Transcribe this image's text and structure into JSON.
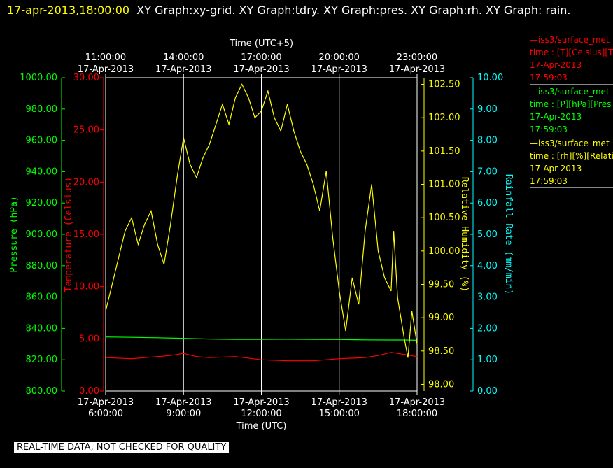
{
  "header": {
    "timestamp": "17-apr-2013,18:00:00",
    "graphs_text": "XY Graph:xy-grid.  XY Graph:tdry.  XY Graph:pres.  XY Graph:rh.  XY Graph: rain."
  },
  "legend": [
    {
      "color": "#ff0000",
      "line1": "—iss3/surface_met",
      "line2": "time : [T][Celsius][T",
      "line3": "17-Apr-2013",
      "line4": "17:59:03"
    },
    {
      "color": "#00ff00",
      "line1": "—iss3/surface_met",
      "line2": "time : [P][hPa][Pres",
      "line3": "17-Apr-2013",
      "line4": "17:59:03"
    },
    {
      "color": "#ffff00",
      "line1": "—iss3/surface_met",
      "line2": "time : [rh][%][Relati",
      "line3": "17-Apr-2013",
      "line4": "17:59:03"
    }
  ],
  "disclaimer": "REAL-TIME DATA, NOT CHECKED FOR QUALITY",
  "chart_data": {
    "type": "line",
    "grid": true,
    "x_bottom": {
      "label": "Time (UTC)",
      "range_hours": [
        6,
        18
      ],
      "ticks": [
        {
          "hour": 6,
          "date": "17-Apr-2013",
          "time": "6:00:00"
        },
        {
          "hour": 9,
          "date": "17-Apr-2013",
          "time": "9:00:00"
        },
        {
          "hour": 12,
          "date": "17-Apr-2013",
          "time": "12:00:00"
        },
        {
          "hour": 15,
          "date": "17-Apr-2013",
          "time": "15:00:00"
        },
        {
          "hour": 18,
          "date": "17-Apr-2013",
          "time": "18:00:00"
        }
      ]
    },
    "x_top": {
      "label": "Time (UTC+5)",
      "ticks": [
        {
          "hour": 6,
          "time": "11:00:00",
          "date": "17-Apr-2013"
        },
        {
          "hour": 9,
          "time": "14:00:00",
          "date": "17-Apr-2013"
        },
        {
          "hour": 12,
          "time": "17:00:00",
          "date": "17-Apr-2013"
        },
        {
          "hour": 15,
          "time": "20:00:00",
          "date": "17-Apr-2013"
        },
        {
          "hour": 18,
          "time": "23:00:00",
          "date": "17-Apr-2013"
        }
      ]
    },
    "axes": {
      "pressure": {
        "label": "Pressure (hPa)",
        "color": "#00ff00",
        "ylim": [
          800,
          1000
        ],
        "ticks": [
          "800.00",
          "820.00",
          "840.00",
          "860.00",
          "880.00",
          "900.00",
          "920.00",
          "940.00",
          "960.00",
          "980.00",
          "1000.00"
        ]
      },
      "temperature": {
        "label": "Temperature (Celsius)",
        "color": "#ff0000",
        "ylim": [
          0,
          30
        ],
        "ticks": [
          "0.00",
          "5.00",
          "10.00",
          "15.00",
          "20.00",
          "25.00",
          "30.00"
        ]
      },
      "rh": {
        "label": "Relative Humidity (%)",
        "color": "#ffff00",
        "ylim": [
          97.9,
          102.6
        ],
        "ticks": [
          "98.00",
          "98.50",
          "99.00",
          "99.50",
          "100.00",
          "100.50",
          "101.00",
          "101.50",
          "102.00",
          "102.50"
        ]
      },
      "rain": {
        "label": "Rainfall Rate (mm/min)",
        "color": "#00ffff",
        "ylim": [
          0,
          10
        ],
        "ticks": [
          "0.00",
          "1.00",
          "2.00",
          "3.00",
          "4.00",
          "5.00",
          "6.00",
          "7.00",
          "8.00",
          "9.00",
          "10.00"
        ]
      }
    },
    "series": [
      {
        "axis": "temperature",
        "color": "#ff0000",
        "x": [
          6,
          7,
          8,
          8.5,
          9,
          9.5,
          10,
          11,
          12,
          13,
          14,
          15,
          16,
          16.5,
          17,
          17.5,
          18
        ],
        "y": [
          3.2,
          3.1,
          3.3,
          3.4,
          3.6,
          3.3,
          3.2,
          3.3,
          3.0,
          2.9,
          2.9,
          3.1,
          3.2,
          3.4,
          3.7,
          3.5,
          3.3
        ]
      },
      {
        "axis": "pressure",
        "color": "#00ff00",
        "x": [
          6,
          7,
          8,
          9,
          10,
          11,
          12,
          13,
          14,
          15,
          16,
          17,
          17.5,
          18
        ],
        "y": [
          834.5,
          834.3,
          834.0,
          833.6,
          833.2,
          833.0,
          833.0,
          833.1,
          833.0,
          832.9,
          832.7,
          832.6,
          832.6,
          832.4
        ]
      },
      {
        "axis": "rh",
        "color": "#ffff00",
        "x": [
          6,
          6.25,
          6.5,
          6.75,
          7,
          7.25,
          7.5,
          7.75,
          8,
          8.25,
          8.5,
          8.75,
          9,
          9.25,
          9.5,
          9.75,
          10,
          10.25,
          10.5,
          10.75,
          11,
          11.25,
          11.5,
          11.75,
          12,
          12.25,
          12.5,
          12.75,
          13,
          13.25,
          13.5,
          13.75,
          14,
          14.25,
          14.5,
          14.75,
          15,
          15.25,
          15.5,
          15.75,
          16,
          16.25,
          16.5,
          16.75,
          17,
          17.1,
          17.25,
          17.5,
          17.65,
          17.8,
          18
        ],
        "y": [
          99.1,
          99.5,
          99.9,
          100.3,
          100.5,
          100.1,
          100.4,
          100.6,
          100.1,
          99.8,
          100.4,
          101.1,
          101.7,
          101.3,
          101.1,
          101.4,
          101.6,
          101.9,
          102.2,
          101.9,
          102.3,
          102.5,
          102.3,
          102.0,
          102.1,
          102.4,
          102.0,
          101.8,
          102.2,
          101.8,
          101.5,
          101.3,
          101.0,
          100.6,
          101.2,
          100.2,
          99.4,
          98.8,
          99.6,
          99.2,
          100.3,
          101.0,
          100.0,
          99.6,
          99.4,
          100.3,
          99.3,
          98.7,
          98.4,
          99.1,
          98.6
        ]
      }
    ]
  }
}
